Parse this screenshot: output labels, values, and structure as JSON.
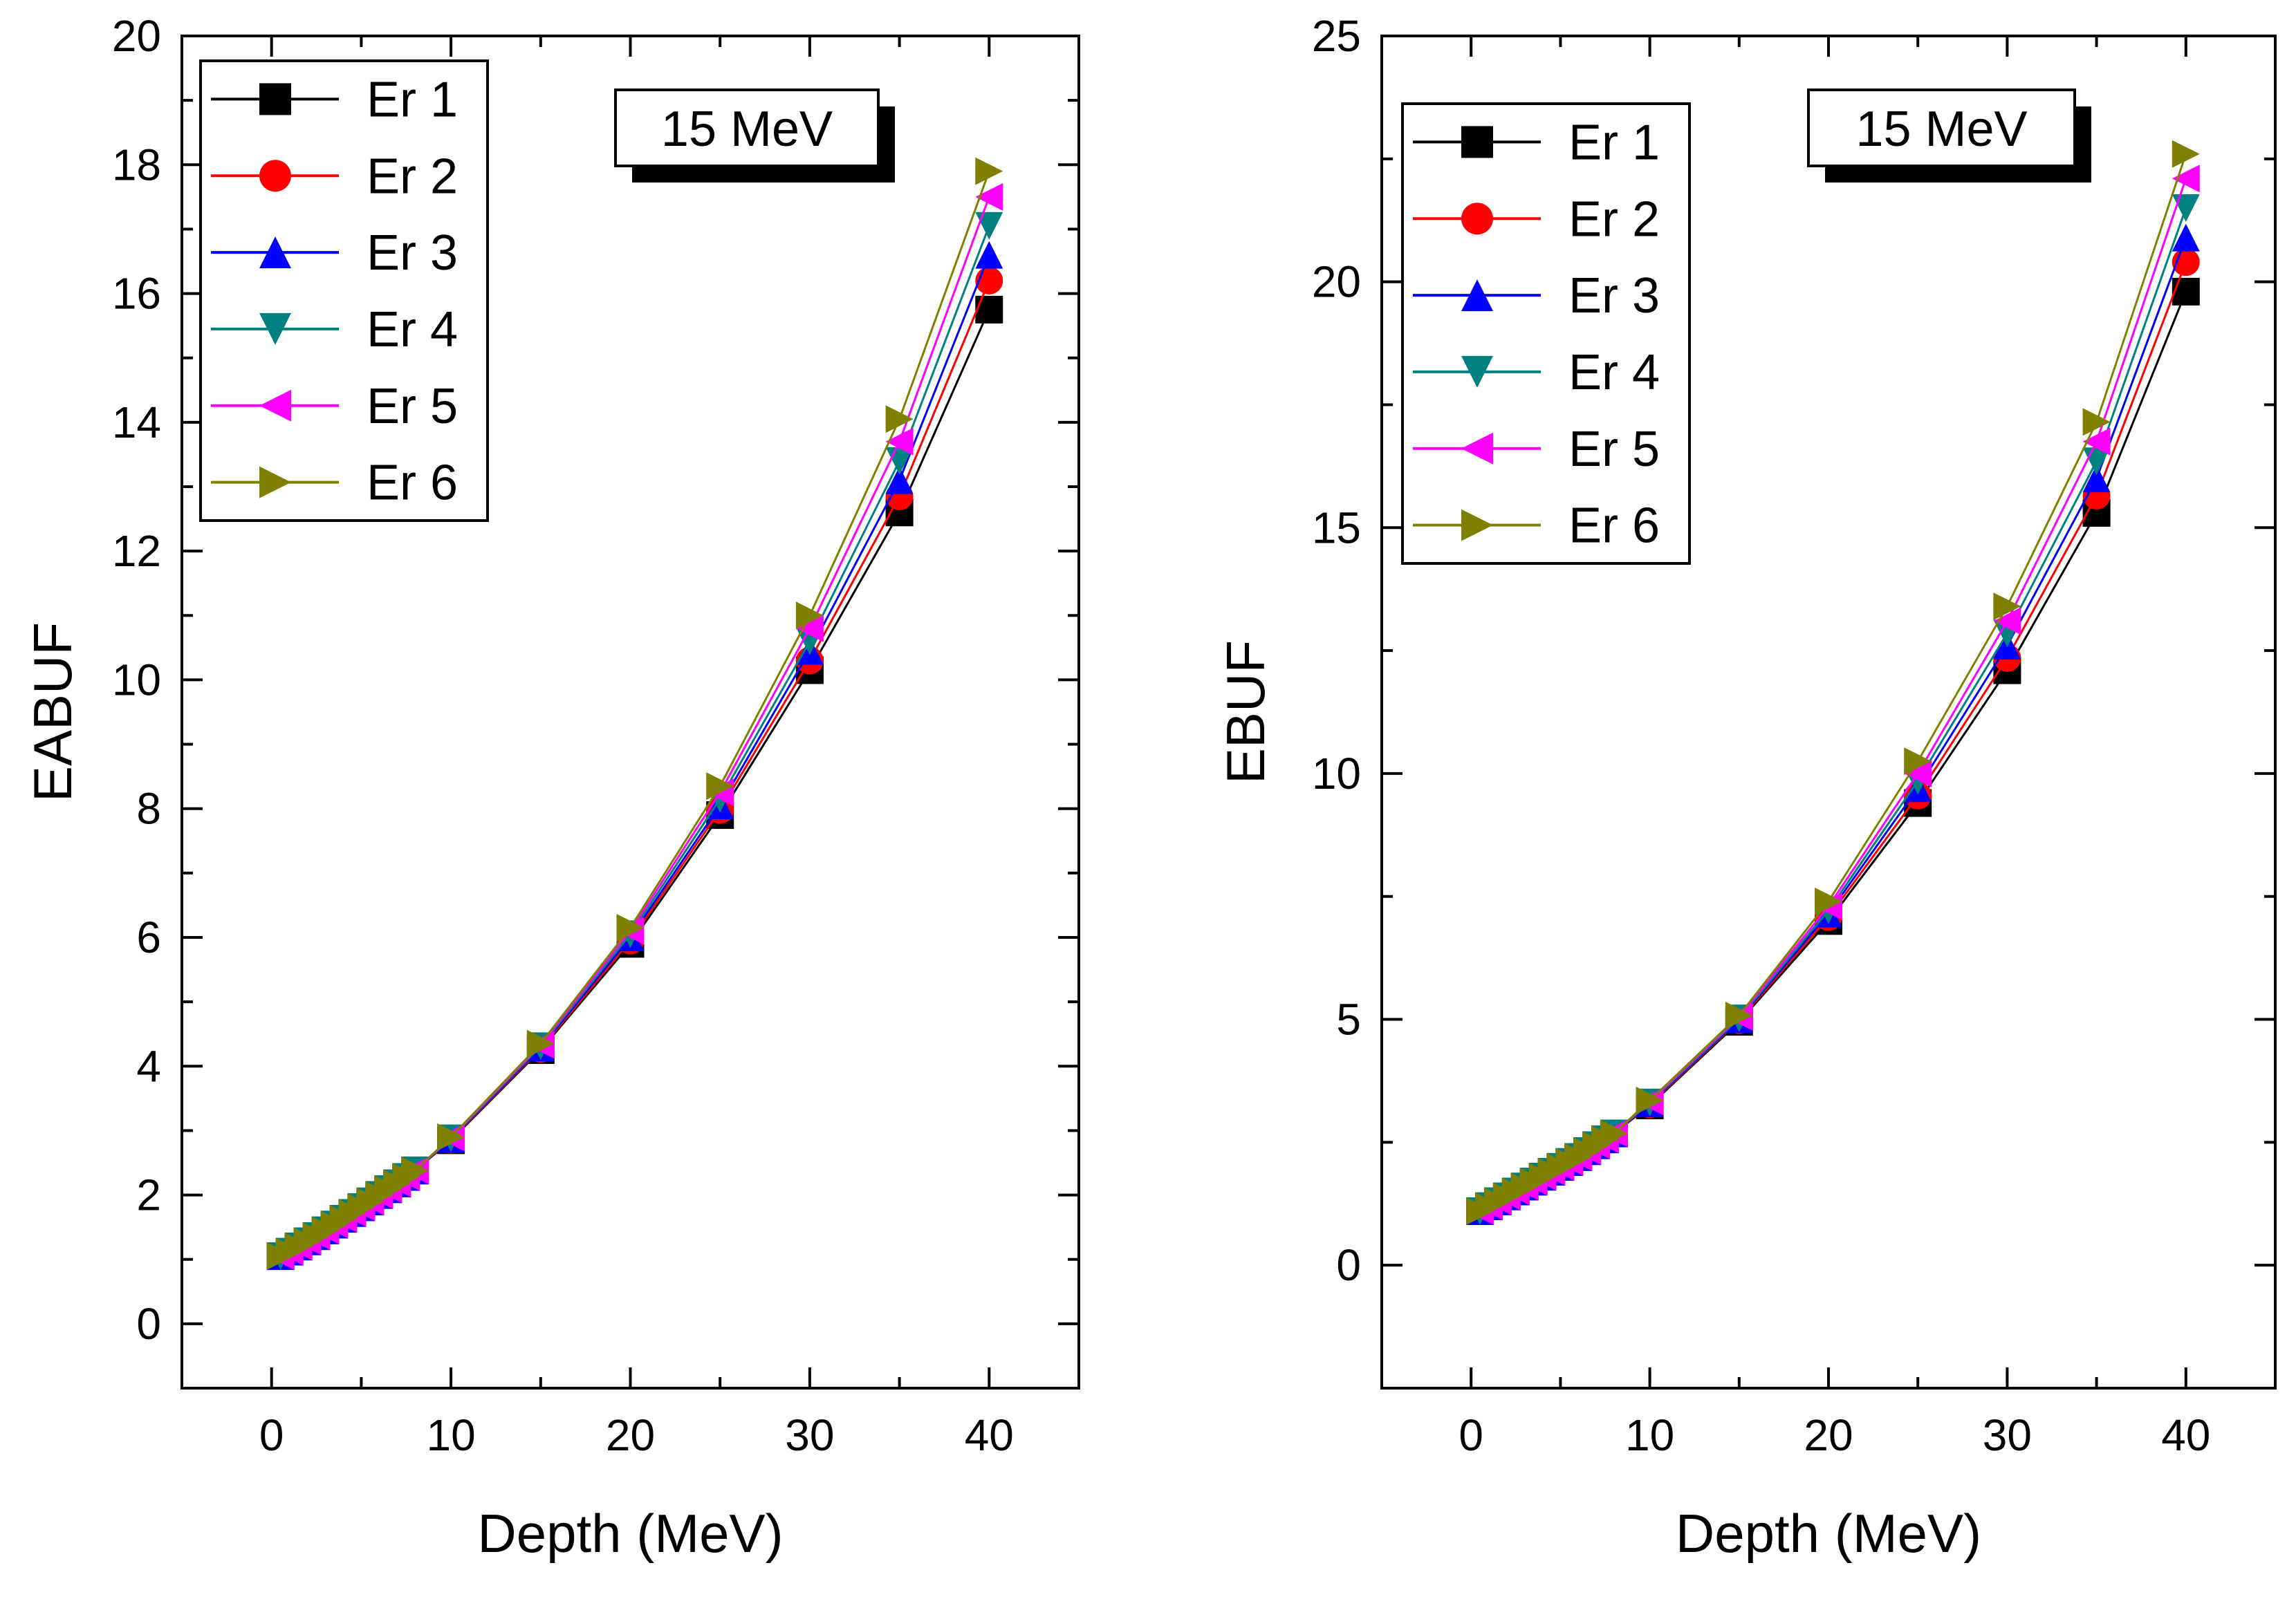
{
  "chart_data": [
    {
      "type": "line",
      "title": "",
      "annotation": "15 MeV",
      "xlabel": "Depth (MeV)",
      "ylabel": "EABUF",
      "xlim": [
        -5,
        45
      ],
      "ylim": [
        -1,
        20
      ],
      "xticks": [
        0,
        10,
        20,
        30,
        40
      ],
      "yticks": [
        0,
        2,
        4,
        6,
        8,
        10,
        12,
        14,
        16,
        18,
        20
      ],
      "legend_position": "top-left",
      "x": [
        0.5,
        1,
        1.5,
        2,
        2.5,
        3,
        3.5,
        4,
        4.5,
        5,
        5.5,
        6,
        6.5,
        7,
        7.5,
        8,
        10,
        15,
        20,
        25,
        30,
        35,
        40
      ],
      "series": [
        {
          "name": "Er 1",
          "color": "#000000",
          "marker": "square",
          "values": [
            1.05,
            1.12,
            1.2,
            1.28,
            1.36,
            1.45,
            1.54,
            1.63,
            1.72,
            1.81,
            1.9,
            2.0,
            2.09,
            2.18,
            2.28,
            2.38,
            2.85,
            4.25,
            5.9,
            7.9,
            10.15,
            12.6,
            15.75
          ]
        },
        {
          "name": "Er 2",
          "color": "#ff0000",
          "marker": "circle",
          "values": [
            1.05,
            1.12,
            1.2,
            1.28,
            1.36,
            1.45,
            1.54,
            1.63,
            1.72,
            1.81,
            1.9,
            2.0,
            2.09,
            2.18,
            2.28,
            2.38,
            2.86,
            4.27,
            5.95,
            7.98,
            10.3,
            12.85,
            16.2
          ]
        },
        {
          "name": "Er 3",
          "color": "#0000ff",
          "marker": "triangle-up",
          "values": [
            1.05,
            1.12,
            1.2,
            1.28,
            1.36,
            1.45,
            1.54,
            1.63,
            1.72,
            1.81,
            1.9,
            2.0,
            2.09,
            2.18,
            2.28,
            2.38,
            2.87,
            4.29,
            6.0,
            8.05,
            10.45,
            13.1,
            16.6
          ]
        },
        {
          "name": "Er 4",
          "color": "#008080",
          "marker": "triangle-down",
          "values": [
            1.05,
            1.12,
            1.2,
            1.28,
            1.36,
            1.45,
            1.54,
            1.63,
            1.72,
            1.81,
            1.9,
            2.0,
            2.09,
            2.18,
            2.28,
            2.38,
            2.88,
            4.31,
            6.05,
            8.15,
            10.6,
            13.4,
            17.05
          ]
        },
        {
          "name": "Er 5",
          "color": "#ff00ff",
          "marker": "triangle-left",
          "values": [
            1.05,
            1.12,
            1.2,
            1.28,
            1.36,
            1.45,
            1.54,
            1.63,
            1.72,
            1.81,
            1.9,
            2.0,
            2.09,
            2.18,
            2.28,
            2.38,
            2.89,
            4.33,
            6.1,
            8.25,
            10.8,
            13.7,
            17.5
          ]
        },
        {
          "name": "Er 6",
          "color": "#808000",
          "marker": "triangle-right",
          "values": [
            1.05,
            1.12,
            1.2,
            1.28,
            1.36,
            1.45,
            1.54,
            1.63,
            1.72,
            1.81,
            1.9,
            2.0,
            2.09,
            2.18,
            2.28,
            2.38,
            2.9,
            4.35,
            6.15,
            8.35,
            11.0,
            14.05,
            17.9
          ]
        }
      ]
    },
    {
      "type": "line",
      "title": "",
      "annotation": "15 MeV",
      "xlabel": "Depth (MeV)",
      "ylabel": "EBUF",
      "xlim": [
        -5,
        45
      ],
      "ylim": [
        -2.5,
        25
      ],
      "xticks": [
        0,
        10,
        20,
        30,
        40
      ],
      "yticks": [
        0,
        5,
        10,
        15,
        20,
        25
      ],
      "legend_position": "top-left",
      "x": [
        0.5,
        1,
        1.5,
        2,
        2.5,
        3,
        3.5,
        4,
        4.5,
        5,
        5.5,
        6,
        6.5,
        7,
        7.5,
        8,
        10,
        15,
        20,
        25,
        30,
        35,
        40
      ],
      "series": [
        {
          "name": "Er 1",
          "color": "#000000",
          "marker": "square",
          "values": [
            1.1,
            1.2,
            1.3,
            1.4,
            1.5,
            1.6,
            1.7,
            1.8,
            1.9,
            2.0,
            2.1,
            2.2,
            2.32,
            2.44,
            2.56,
            2.68,
            3.25,
            4.95,
            7.0,
            9.4,
            12.1,
            15.3,
            19.8
          ]
        },
        {
          "name": "Er 2",
          "color": "#ff0000",
          "marker": "circle",
          "values": [
            1.1,
            1.2,
            1.3,
            1.4,
            1.5,
            1.6,
            1.7,
            1.8,
            1.9,
            2.0,
            2.1,
            2.2,
            2.32,
            2.44,
            2.56,
            2.68,
            3.27,
            4.98,
            7.08,
            9.55,
            12.35,
            15.65,
            20.4
          ]
        },
        {
          "name": "Er 3",
          "color": "#0000ff",
          "marker": "triangle-up",
          "values": [
            1.1,
            1.2,
            1.3,
            1.4,
            1.5,
            1.6,
            1.7,
            1.8,
            1.9,
            2.0,
            2.1,
            2.2,
            2.32,
            2.44,
            2.56,
            2.68,
            3.29,
            5.0,
            7.15,
            9.7,
            12.6,
            16.0,
            20.9
          ]
        },
        {
          "name": "Er 4",
          "color": "#008080",
          "marker": "triangle-down",
          "values": [
            1.1,
            1.2,
            1.3,
            1.4,
            1.5,
            1.6,
            1.7,
            1.8,
            1.9,
            2.0,
            2.1,
            2.2,
            2.32,
            2.44,
            2.56,
            2.68,
            3.31,
            5.02,
            7.22,
            9.85,
            12.85,
            16.35,
            21.5
          ]
        },
        {
          "name": "Er 5",
          "color": "#ff00ff",
          "marker": "triangle-left",
          "values": [
            1.1,
            1.2,
            1.3,
            1.4,
            1.5,
            1.6,
            1.7,
            1.8,
            1.9,
            2.0,
            2.1,
            2.2,
            2.32,
            2.44,
            2.56,
            2.68,
            3.33,
            5.05,
            7.3,
            10.0,
            13.1,
            16.75,
            22.1
          ]
        },
        {
          "name": "Er 6",
          "color": "#808000",
          "marker": "triangle-right",
          "values": [
            1.1,
            1.2,
            1.3,
            1.4,
            1.5,
            1.6,
            1.7,
            1.8,
            1.9,
            2.0,
            2.1,
            2.2,
            2.32,
            2.44,
            2.56,
            2.68,
            3.35,
            5.08,
            7.4,
            10.25,
            13.4,
            17.15,
            22.6
          ]
        }
      ]
    }
  ]
}
